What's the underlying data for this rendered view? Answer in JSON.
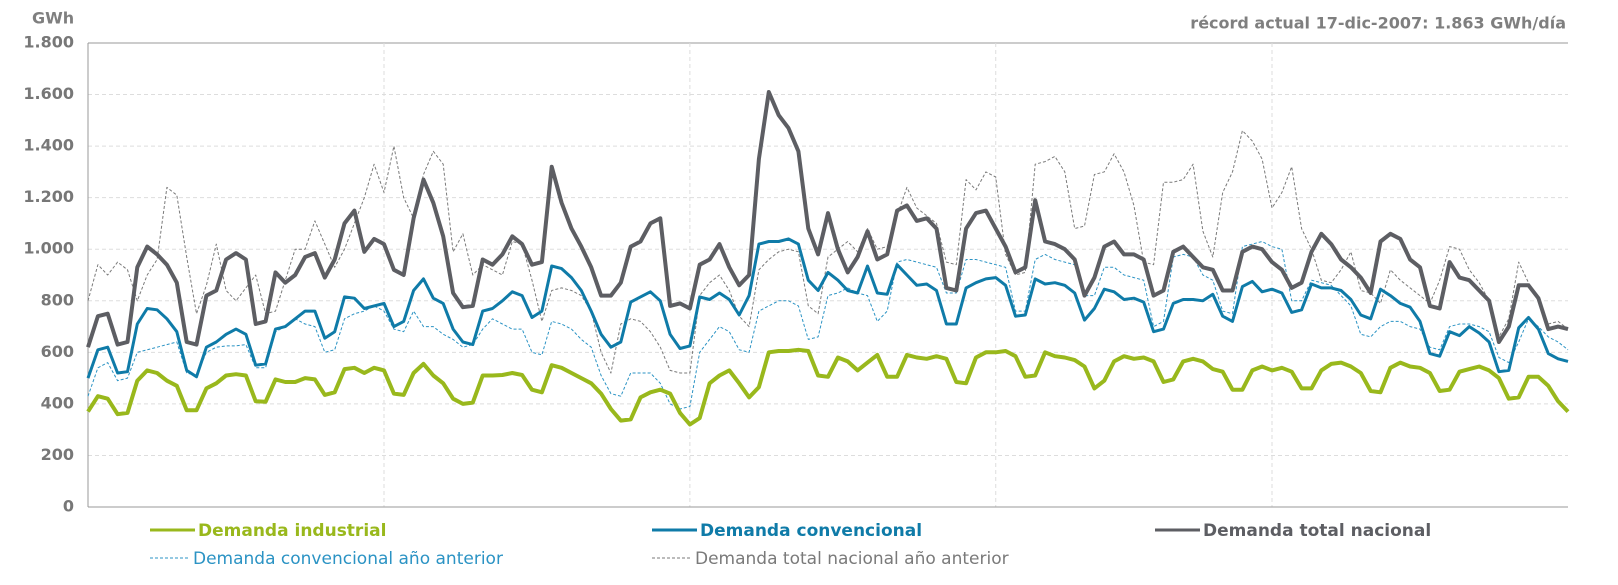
{
  "chart_data": {
    "type": "line",
    "y_label": "GWh",
    "annotation": "récord actual 17-dic-2007: 1.863 GWh/día",
    "ylim": [
      0,
      1800
    ],
    "yticks": [
      0,
      200,
      400,
      600,
      800,
      {
        "value": 1000,
        "label": "1.000"
      },
      {
        "value": 1200,
        "label": "1.200"
      },
      {
        "value": 1400,
        "label": "1.400"
      },
      {
        "value": 1600,
        "label": "1.600"
      },
      {
        "value": 1800,
        "label": "1.800"
      }
    ],
    "xlim": [
      0,
      150
    ],
    "xticks": [
      30,
      61,
      92,
      120
    ],
    "grid": true,
    "series": [
      {
        "name": "Demanda industrial",
        "color": "#99b81c",
        "width": 4,
        "dashed": false,
        "values": [
          370,
          430,
          420,
          360,
          365,
          490,
          530,
          520,
          490,
          470,
          375,
          375,
          460,
          480,
          510,
          515,
          510,
          410,
          408,
          495,
          485,
          485,
          500,
          495,
          435,
          445,
          535,
          540,
          520,
          540,
          530,
          440,
          435,
          520,
          555,
          510,
          480,
          420,
          400,
          405,
          510,
          510,
          512,
          520,
          512,
          455,
          445,
          550,
          540,
          520,
          500,
          480,
          440,
          380,
          335,
          340,
          425,
          445,
          455,
          440,
          365,
          320,
          345,
          480,
          510,
          530,
          480,
          425,
          465,
          600,
          605,
          605,
          610,
          605,
          510,
          505,
          580,
          565,
          530,
          560,
          590,
          505,
          505,
          590,
          580,
          575,
          585,
          575,
          485,
          480,
          580,
          600,
          600,
          605,
          585,
          505,
          510,
          600,
          585,
          580,
          570,
          545,
          460,
          490,
          565,
          585,
          575,
          580,
          565,
          485,
          495,
          565,
          575,
          565,
          535,
          525,
          455,
          455,
          530,
          545,
          530,
          540,
          525,
          460,
          460,
          530,
          555,
          560,
          545,
          520,
          450,
          445,
          540,
          560,
          545,
          540,
          520,
          450,
          455,
          525,
          535,
          545,
          530,
          500,
          420,
          425,
          505,
          505,
          470,
          410,
          370
        ]
      },
      {
        "name": "Demanda convencional",
        "color": "#0f7ba8",
        "width": 3,
        "dashed": false,
        "values": [
          500,
          610,
          620,
          520,
          525,
          710,
          770,
          765,
          730,
          680,
          530,
          505,
          620,
          640,
          670,
          690,
          670,
          550,
          555,
          690,
          700,
          730,
          760,
          760,
          655,
          680,
          815,
          810,
          770,
          780,
          790,
          700,
          720,
          840,
          885,
          810,
          790,
          690,
          640,
          630,
          760,
          770,
          800,
          835,
          820,
          735,
          760,
          935,
          925,
          890,
          840,
          760,
          670,
          620,
          640,
          795,
          815,
          835,
          800,
          670,
          615,
          625,
          815,
          805,
          830,
          805,
          745,
          820,
          1020,
          1030,
          1030,
          1040,
          1020,
          880,
          840,
          910,
          880,
          840,
          830,
          935,
          830,
          825,
          940,
          900,
          860,
          865,
          840,
          710,
          710,
          850,
          870,
          885,
          890,
          860,
          740,
          745,
          885,
          865,
          870,
          860,
          830,
          725,
          770,
          845,
          835,
          805,
          810,
          795,
          680,
          690,
          790,
          805,
          805,
          800,
          825,
          740,
          720,
          855,
          875,
          835,
          845,
          830,
          755,
          765,
          865,
          850,
          850,
          840,
          805,
          745,
          730,
          845,
          820,
          790,
          775,
          720,
          595,
          585,
          680,
          665,
          700,
          675,
          640,
          525,
          530,
          695,
          735,
          690,
          595,
          575,
          565
        ]
      },
      {
        "name": "Demanda total nacional",
        "color": "#5d5e63",
        "width": 4,
        "dashed": false,
        "values": [
          620,
          740,
          750,
          630,
          640,
          930,
          1010,
          980,
          940,
          870,
          640,
          630,
          820,
          840,
          960,
          985,
          960,
          710,
          720,
          910,
          870,
          900,
          970,
          985,
          890,
          960,
          1100,
          1150,
          990,
          1040,
          1020,
          920,
          900,
          1120,
          1270,
          1180,
          1050,
          830,
          775,
          780,
          960,
          940,
          980,
          1050,
          1020,
          940,
          950,
          1320,
          1180,
          1080,
          1010,
          930,
          820,
          820,
          870,
          1010,
          1030,
          1100,
          1120,
          780,
          790,
          770,
          940,
          960,
          1020,
          930,
          860,
          900,
          1350,
          1610,
          1520,
          1470,
          1380,
          1080,
          980,
          1140,
          1000,
          910,
          970,
          1070,
          960,
          980,
          1150,
          1170,
          1110,
          1120,
          1080,
          850,
          840,
          1080,
          1140,
          1150,
          1080,
          1010,
          910,
          930,
          1190,
          1030,
          1020,
          1000,
          960,
          820,
          890,
          1010,
          1030,
          980,
          980,
          960,
          820,
          840,
          990,
          1010,
          970,
          930,
          920,
          840,
          840,
          990,
          1010,
          1000,
          950,
          920,
          850,
          870,
          990,
          1060,
          1020,
          960,
          930,
          890,
          830,
          1030,
          1060,
          1040,
          960,
          930,
          780,
          770,
          950,
          890,
          880,
          840,
          800,
          640,
          700,
          860,
          860,
          810,
          690,
          700,
          690
        ]
      },
      {
        "name": "Demanda convencional año anterior",
        "color": "#2b93c4",
        "width": 1,
        "dashed": true,
        "values": [
          430,
          540,
          560,
          490,
          500,
          600,
          610,
          620,
          630,
          640,
          520,
          510,
          600,
          620,
          625,
          625,
          630,
          540,
          540,
          680,
          700,
          730,
          710,
          700,
          600,
          610,
          730,
          750,
          760,
          780,
          760,
          690,
          680,
          760,
          700,
          700,
          670,
          650,
          620,
          630,
          690,
          730,
          710,
          690,
          690,
          600,
          590,
          720,
          710,
          690,
          650,
          620,
          510,
          440,
          430,
          520,
          520,
          520,
          480,
          400,
          380,
          390,
          600,
          650,
          700,
          680,
          610,
          600,
          760,
          780,
          800,
          800,
          780,
          650,
          660,
          820,
          830,
          850,
          830,
          820,
          720,
          760,
          950,
          960,
          950,
          940,
          930,
          830,
          830,
          960,
          960,
          950,
          940,
          930,
          760,
          760,
          960,
          980,
          960,
          950,
          940,
          820,
          820,
          930,
          930,
          900,
          890,
          880,
          700,
          720,
          970,
          980,
          970,
          900,
          880,
          760,
          750,
          1010,
          1020,
          1030,
          1010,
          1000,
          800,
          800,
          880,
          870,
          860,
          820,
          780,
          670,
          660,
          700,
          720,
          720,
          700,
          690,
          620,
          610,
          700,
          710,
          710,
          700,
          680,
          580,
          560,
          640,
          730,
          700,
          660,
          640,
          610
        ]
      },
      {
        "name": "Demanda total nacional año anterior",
        "color": "#7a7a7a",
        "width": 1,
        "dashed": true,
        "values": [
          800,
          940,
          900,
          950,
          920,
          800,
          900,
          960,
          1240,
          1210,
          970,
          750,
          860,
          1020,
          840,
          800,
          850,
          900,
          750,
          760,
          880,
          1000,
          1000,
          1110,
          1020,
          930,
          1000,
          1100,
          1200,
          1330,
          1220,
          1400,
          1200,
          1120,
          1290,
          1380,
          1330,
          990,
          1060,
          900,
          940,
          920,
          900,
          1030,
          1020,
          880,
          720,
          840,
          850,
          840,
          820,
          760,
          600,
          520,
          710,
          730,
          720,
          680,
          620,
          530,
          520,
          520,
          820,
          870,
          900,
          840,
          740,
          700,
          920,
          960,
          990,
          1000,
          990,
          780,
          750,
          970,
          1000,
          1030,
          990,
          1080,
          1000,
          1010,
          1130,
          1240,
          1160,
          1130,
          1100,
          950,
          940,
          1270,
          1230,
          1300,
          1280,
          980,
          900,
          910,
          1330,
          1340,
          1360,
          1300,
          1080,
          1090,
          1290,
          1300,
          1370,
          1300,
          1170,
          950,
          940,
          1260,
          1260,
          1270,
          1330,
          1070,
          970,
          1220,
          1300,
          1460,
          1420,
          1350,
          1160,
          1220,
          1320,
          1080,
          1000,
          880,
          870,
          920,
          990,
          840,
          830,
          790,
          920,
          880,
          850,
          820,
          790,
          880,
          1010,
          1000,
          920,
          870,
          800,
          660,
          730,
          950,
          870,
          800,
          710,
          720,
          690
        ]
      }
    ]
  }
}
